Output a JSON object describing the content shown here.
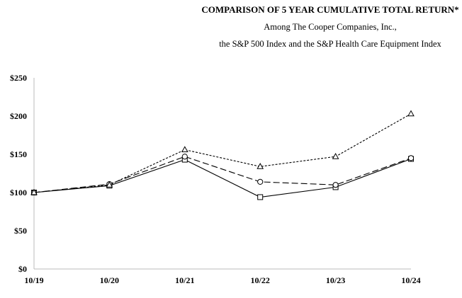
{
  "chart_data": {
    "type": "line",
    "title": "COMPARISON OF 5 YEAR CUMULATIVE TOTAL RETURN*",
    "subtitle_lines": [
      "Among The Cooper Companies, Inc.,",
      "the S&P 500 Index and the S&P Health Care Equipment Index"
    ],
    "xlabel": "",
    "ylabel": "",
    "categories": [
      "10/19",
      "10/20",
      "10/21",
      "10/22",
      "10/23",
      "10/24"
    ],
    "y_ticks": [
      "$0",
      "$50",
      "$100",
      "$150",
      "$200",
      "$250"
    ],
    "ylim": [
      0,
      250
    ],
    "grid": false,
    "legend": "none",
    "series": [
      {
        "marker": "square",
        "line_style": "solid",
        "values": [
          100,
          109,
          143,
          94,
          107,
          144
        ]
      },
      {
        "marker": "circle",
        "line_style": "dashed",
        "values": [
          100,
          111,
          147,
          114,
          110,
          145
        ]
      },
      {
        "marker": "triangle",
        "line_style": "dotted",
        "values": [
          100,
          110,
          156,
          134,
          147,
          203
        ]
      }
    ]
  }
}
